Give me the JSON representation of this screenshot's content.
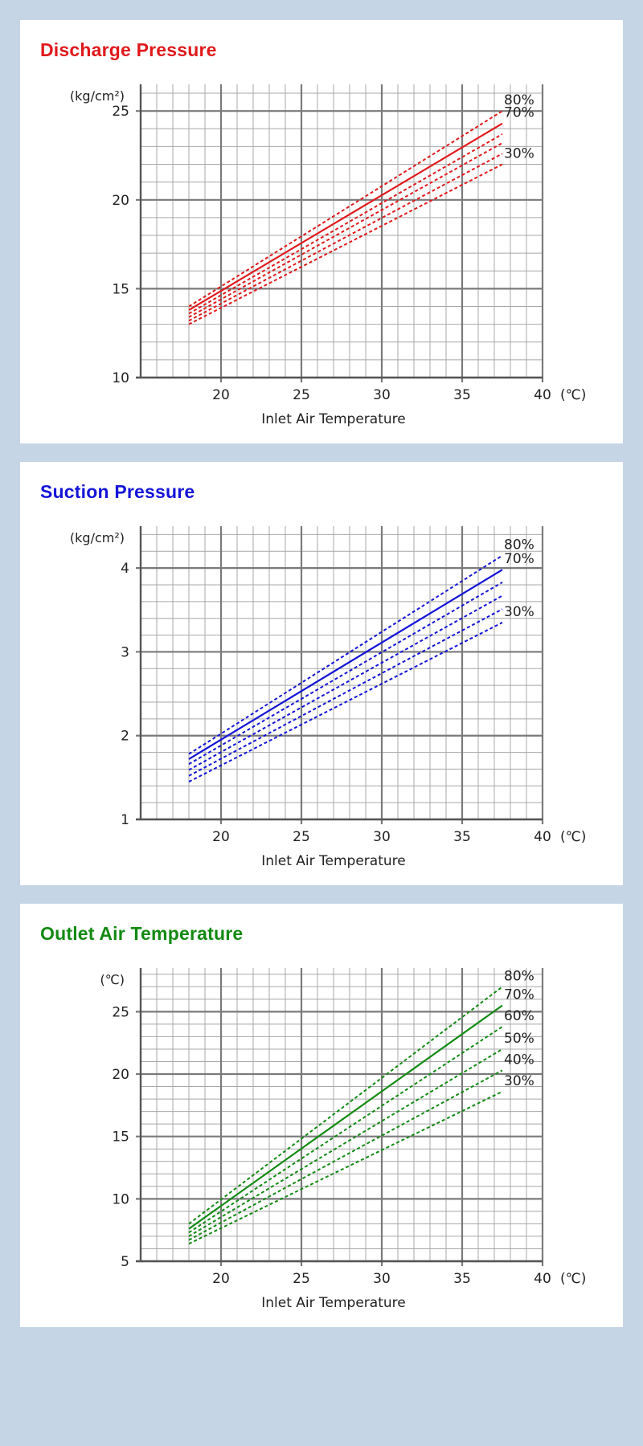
{
  "chart_data": [
    {
      "type": "line",
      "title": "Discharge Pressure",
      "title_color": "#e0191c",
      "line_color": "#e0191c",
      "xlabel": "Inlet Air Temperature",
      "x_unit": "(℃)",
      "y_unit": "(kg/cm²)",
      "xlim": [
        15,
        40
      ],
      "ylim": [
        10,
        26.5
      ],
      "x_ticks": [
        "20",
        "25",
        "30",
        "35",
        "40"
      ],
      "y_ticks": [
        "10",
        "15",
        "20",
        "25"
      ],
      "series": [
        {
          "name": "80%",
          "x": [
            18,
            37.5
          ],
          "y": [
            14.0,
            25.0
          ],
          "style": "dashed"
        },
        {
          "name": "70%",
          "x": [
            18,
            37.5
          ],
          "y": [
            13.8,
            24.3
          ],
          "style": "solid"
        },
        {
          "name": "",
          "x": [
            18,
            37.5
          ],
          "y": [
            13.6,
            23.7
          ],
          "style": "dashed"
        },
        {
          "name": "",
          "x": [
            18,
            37.5
          ],
          "y": [
            13.4,
            23.2
          ],
          "style": "dashed"
        },
        {
          "name": "",
          "x": [
            18,
            37.5
          ],
          "y": [
            13.2,
            22.6
          ],
          "style": "dashed"
        },
        {
          "name": "30%",
          "x": [
            18,
            37.5
          ],
          "y": [
            13.0,
            22.0
          ],
          "style": "dashed"
        }
      ]
    },
    {
      "type": "line",
      "title": "Suction Pressure",
      "title_color": "#1414d8",
      "line_color": "#1414d8",
      "xlabel": "Inlet Air Temperature",
      "x_unit": "(℃)",
      "y_unit": "(kg/cm²)",
      "xlim": [
        15,
        40
      ],
      "ylim": [
        1,
        4.5
      ],
      "x_ticks": [
        "20",
        "25",
        "30",
        "35",
        "40"
      ],
      "y_ticks": [
        "1",
        "2",
        "3",
        "4"
      ],
      "series": [
        {
          "name": "80%",
          "x": [
            18,
            37.5
          ],
          "y": [
            1.78,
            4.15
          ],
          "style": "dashed"
        },
        {
          "name": "70%",
          "x": [
            18,
            37.5
          ],
          "y": [
            1.72,
            3.98
          ],
          "style": "solid"
        },
        {
          "name": "",
          "x": [
            18,
            37.5
          ],
          "y": [
            1.66,
            3.83
          ],
          "style": "dashed"
        },
        {
          "name": "",
          "x": [
            18,
            37.5
          ],
          "y": [
            1.59,
            3.67
          ],
          "style": "dashed"
        },
        {
          "name": "",
          "x": [
            18,
            37.5
          ],
          "y": [
            1.52,
            3.51
          ],
          "style": "dashed"
        },
        {
          "name": "30%",
          "x": [
            18,
            37.5
          ],
          "y": [
            1.45,
            3.35
          ],
          "style": "dashed"
        }
      ]
    },
    {
      "type": "line",
      "title": "Outlet Air Temperature",
      "title_color": "#128a12",
      "line_color": "#128a12",
      "xlabel": "Inlet Air Temperature",
      "x_unit": "(℃)",
      "y_unit": "(℃)",
      "xlim": [
        15,
        40
      ],
      "ylim": [
        5,
        28.5
      ],
      "x_ticks": [
        "20",
        "25",
        "30",
        "35",
        "40"
      ],
      "y_ticks": [
        "5",
        "10",
        "15",
        "20",
        "25"
      ],
      "series": [
        {
          "name": "80%",
          "x": [
            18,
            37.5
          ],
          "y": [
            8.0,
            27.0
          ],
          "style": "dashed"
        },
        {
          "name": "70%",
          "x": [
            18,
            37.5
          ],
          "y": [
            7.6,
            25.5
          ],
          "style": "solid"
        },
        {
          "name": "60%",
          "x": [
            18,
            37.5
          ],
          "y": [
            7.3,
            23.8
          ],
          "style": "dashed"
        },
        {
          "name": "50%",
          "x": [
            18,
            37.5
          ],
          "y": [
            7.0,
            22.0
          ],
          "style": "dashed"
        },
        {
          "name": "40%",
          "x": [
            18,
            37.5
          ],
          "y": [
            6.7,
            20.3
          ],
          "style": "dashed"
        },
        {
          "name": "30%",
          "x": [
            18,
            37.5
          ],
          "y": [
            6.4,
            18.6
          ],
          "style": "dashed"
        }
      ]
    }
  ]
}
